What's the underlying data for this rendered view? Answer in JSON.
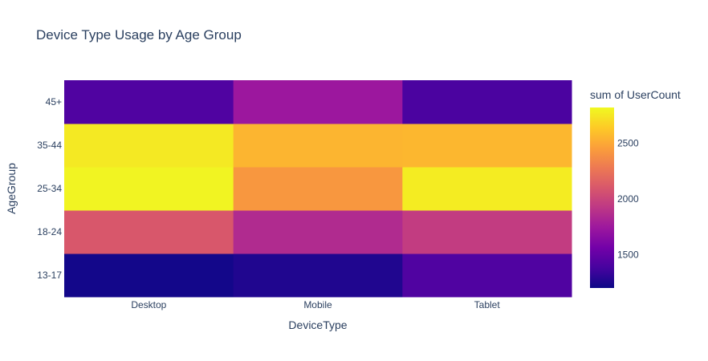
{
  "chart_data": {
    "type": "heatmap",
    "title": "Device Type Usage by Age Group",
    "xlabel": "DeviceType",
    "ylabel": "AgeGroup",
    "x_categories": [
      "Desktop",
      "Mobile",
      "Tablet"
    ],
    "y_categories": [
      "13-17",
      "18-24",
      "25-34",
      "35-44",
      "45+"
    ],
    "z": [
      [
        1220,
        1260,
        1420
      ],
      [
        2100,
        1850,
        1950
      ],
      [
        2800,
        2420,
        2770
      ],
      [
        2760,
        2550,
        2560
      ],
      [
        1420,
        1740,
        1400
      ]
    ],
    "colorbar": {
      "title": "sum of UserCount",
      "zmin": 1200,
      "zmax": 2820,
      "ticks": [
        1500,
        2000,
        2500
      ],
      "tick_labels": [
        "1500",
        "2000",
        "2500"
      ]
    },
    "colorscale": "plasma",
    "grid": false
  }
}
